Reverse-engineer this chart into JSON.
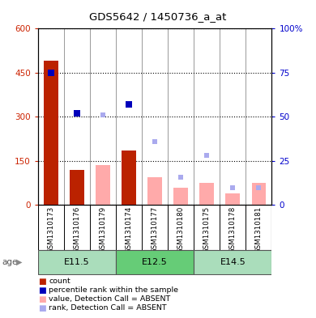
{
  "title": "GDS5642 / 1450736_a_at",
  "samples": [
    "GSM1310173",
    "GSM1310176",
    "GSM1310179",
    "GSM1310174",
    "GSM1310177",
    "GSM1310180",
    "GSM1310175",
    "GSM1310178",
    "GSM1310181"
  ],
  "age_groups": [
    {
      "label": "E11.5",
      "start": 0,
      "end": 3
    },
    {
      "label": "E12.5",
      "start": 3,
      "end": 6
    },
    {
      "label": "E14.5",
      "start": 6,
      "end": 9
    }
  ],
  "count_values": [
    490,
    120,
    null,
    185,
    null,
    null,
    null,
    null,
    null
  ],
  "rank_values": [
    75,
    52,
    null,
    57,
    null,
    null,
    null,
    null,
    null
  ],
  "absent_value_values": [
    null,
    null,
    135,
    null,
    95,
    60,
    75,
    40,
    75
  ],
  "absent_rank_values": [
    null,
    null,
    51,
    null,
    36,
    16,
    28,
    10,
    10
  ],
  "ylim_left": [
    0,
    600
  ],
  "ylim_right": [
    0,
    100
  ],
  "yticks_left": [
    0,
    150,
    300,
    450,
    600
  ],
  "yticks_right": [
    0,
    25,
    50,
    75,
    100
  ],
  "yticklabels_left": [
    "0",
    "150",
    "300",
    "450",
    "600"
  ],
  "yticklabels_right": [
    "0",
    "25",
    "50",
    "75",
    "100%"
  ],
  "count_color": "#BB2200",
  "rank_color": "#0000BB",
  "absent_value_color": "#FFAAAA",
  "absent_rank_color": "#AAAAEE",
  "age_group_colors": [
    "#AADDBB",
    "#66CC77",
    "#AADDBB"
  ],
  "age_group_border": "#555555",
  "xlabel_color": "#333333",
  "left_axis_color": "#CC2200",
  "right_axis_color": "#0000CC",
  "legend_items": [
    {
      "label": "count",
      "color": "#BB2200"
    },
    {
      "label": "percentile rank within the sample",
      "color": "#0000BB"
    },
    {
      "label": "value, Detection Call = ABSENT",
      "color": "#FFAAAA"
    },
    {
      "label": "rank, Detection Call = ABSENT",
      "color": "#AAAAEE"
    }
  ]
}
